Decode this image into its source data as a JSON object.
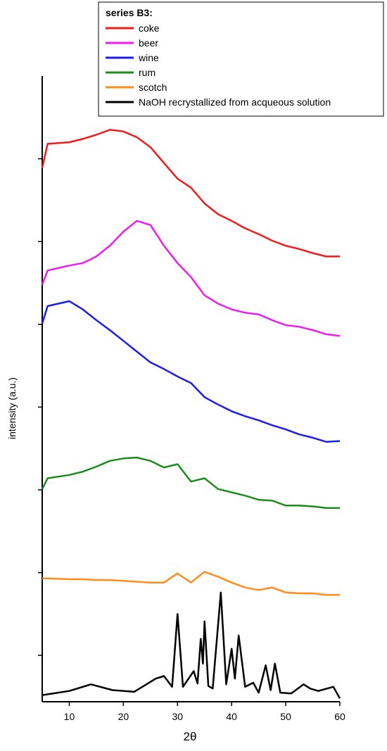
{
  "chart_data": {
    "type": "line",
    "legend_title": "series B3:",
    "xlabel": "2θ",
    "ylabel": "intensity (a.u.)",
    "xlim": [
      5,
      60
    ],
    "xticks": [
      10,
      20,
      30,
      40,
      50,
      60
    ],
    "ylim": [
      0.44,
      8.0
    ],
    "yticks": [
      1,
      2,
      3,
      4,
      5,
      6,
      7
    ],
    "legend": "top-right",
    "series": [
      {
        "name": "coke",
        "color": "#ee1c1c",
        "x": [
          5,
          6,
          10,
          12.5,
          15,
          17.5,
          20,
          22.5,
          25,
          27.5,
          30,
          32.5,
          35,
          37.5,
          40,
          42.5,
          45,
          47.5,
          50,
          52.5,
          55,
          57.5,
          60
        ],
        "values": [
          6.89,
          7.18,
          7.2,
          7.24,
          7.29,
          7.35,
          7.33,
          7.26,
          7.14,
          6.95,
          6.76,
          6.65,
          6.46,
          6.33,
          6.25,
          6.16,
          6.09,
          6.01,
          5.95,
          5.91,
          5.86,
          5.82,
          5.82
        ]
      },
      {
        "name": "beer",
        "color": "#ee1cee",
        "x": [
          5,
          6,
          10,
          12.5,
          15,
          17.5,
          20,
          22.5,
          25,
          27.5,
          30,
          32.5,
          35,
          37.5,
          40,
          42.5,
          45,
          47.5,
          50,
          52.5,
          55,
          57.5,
          60
        ],
        "values": [
          5.48,
          5.65,
          5.71,
          5.74,
          5.82,
          5.95,
          6.12,
          6.25,
          6.2,
          5.95,
          5.74,
          5.57,
          5.35,
          5.25,
          5.18,
          5.14,
          5.12,
          5.05,
          4.99,
          4.97,
          4.93,
          4.88,
          4.86
        ]
      },
      {
        "name": "wine",
        "color": "#1c1cee",
        "x": [
          5,
          6,
          10,
          12.5,
          15,
          17.5,
          20,
          22.5,
          25,
          27.5,
          30,
          32.5,
          35,
          37.5,
          40,
          42.5,
          45,
          47.5,
          50,
          52.5,
          55,
          57.5,
          60
        ],
        "values": [
          5.01,
          5.22,
          5.28,
          5.18,
          5.05,
          4.93,
          4.8,
          4.67,
          4.54,
          4.46,
          4.37,
          4.29,
          4.12,
          4.03,
          3.95,
          3.89,
          3.84,
          3.78,
          3.73,
          3.67,
          3.63,
          3.58,
          3.59
        ]
      },
      {
        "name": "rum",
        "color": "#1c8c1c",
        "x": [
          5,
          6,
          10,
          12.5,
          15,
          17.5,
          20,
          22.5,
          25,
          27.5,
          30,
          32.5,
          35,
          37.5,
          40,
          42.5,
          45,
          47.5,
          50,
          52.5,
          55,
          57.5,
          60
        ],
        "values": [
          3.01,
          3.14,
          3.18,
          3.22,
          3.28,
          3.35,
          3.38,
          3.39,
          3.35,
          3.27,
          3.31,
          3.1,
          3.14,
          3.01,
          2.97,
          2.93,
          2.88,
          2.87,
          2.81,
          2.81,
          2.8,
          2.78,
          2.78
        ]
      },
      {
        "name": "scotch",
        "color": "#ff8c1c",
        "x": [
          5,
          6,
          10,
          12.5,
          15,
          17.5,
          20,
          22.5,
          25,
          27.5,
          30,
          32.5,
          35,
          37.5,
          40,
          42.5,
          45,
          47.5,
          50,
          52.5,
          55,
          57.5,
          60
        ],
        "values": [
          1.93,
          1.93,
          1.92,
          1.92,
          1.91,
          1.91,
          1.9,
          1.89,
          1.88,
          1.88,
          1.99,
          1.88,
          2.01,
          1.95,
          1.88,
          1.82,
          1.79,
          1.82,
          1.76,
          1.75,
          1.75,
          1.73,
          1.73
        ]
      },
      {
        "name": "NaOH recrystallized from acqueous solution",
        "color": "#000000",
        "x": [
          5,
          10,
          14,
          18,
          22,
          26,
          27.5,
          29,
          30,
          31,
          33,
          33.7,
          34.3,
          34.7,
          35,
          35.7,
          36.5,
          38,
          39,
          40,
          40.6,
          41.3,
          42.5,
          44,
          45,
          46.3,
          47.2,
          48,
          49,
          51,
          53.3,
          54.5,
          56,
          58.8,
          60
        ],
        "values": [
          0.52,
          0.57,
          0.65,
          0.58,
          0.56,
          0.72,
          0.75,
          0.62,
          1.5,
          0.62,
          0.81,
          0.66,
          1.2,
          0.9,
          1.41,
          0.63,
          0.6,
          1.76,
          0.65,
          1.08,
          0.72,
          1.24,
          0.62,
          0.67,
          0.55,
          0.88,
          0.58,
          0.9,
          0.55,
          0.54,
          0.65,
          0.6,
          0.57,
          0.62,
          0.48
        ]
      }
    ]
  }
}
